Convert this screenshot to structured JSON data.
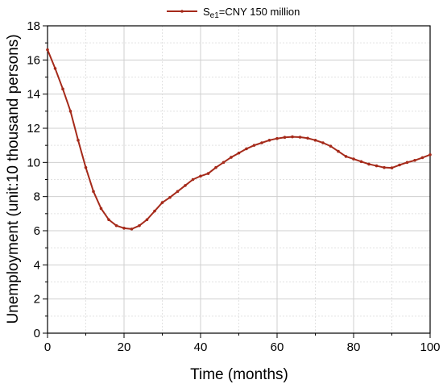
{
  "chart_data": {
    "type": "line",
    "title": "",
    "xlabel": "Time (months)",
    "ylabel": "Unemployment  (unit:10 thousand persons)",
    "xlim": [
      0,
      100
    ],
    "ylim": [
      0,
      18
    ],
    "xticks": [
      0,
      20,
      40,
      60,
      80,
      100
    ],
    "yticks": [
      0,
      2,
      4,
      6,
      8,
      10,
      12,
      14,
      16,
      18
    ],
    "grid": true,
    "legend": "top-center",
    "series": [
      {
        "name_main": "S",
        "name_sub": "e1",
        "name_rest": "=CNY 150 million",
        "color": "#a52a1a",
        "x": [
          0,
          2,
          4,
          6,
          8,
          10,
          12,
          14,
          16,
          18,
          20,
          22,
          24,
          26,
          28,
          30,
          32,
          34,
          36,
          38,
          40,
          42,
          44,
          46,
          48,
          50,
          52,
          54,
          56,
          58,
          60,
          62,
          64,
          66,
          68,
          70,
          72,
          74,
          76,
          78,
          80,
          82,
          84,
          86,
          88,
          90,
          92,
          94,
          96,
          98,
          100
        ],
        "y": [
          16.6,
          15.5,
          14.3,
          13.0,
          11.3,
          9.7,
          8.3,
          7.3,
          6.65,
          6.3,
          6.15,
          6.1,
          6.3,
          6.65,
          7.15,
          7.65,
          7.95,
          8.3,
          8.65,
          9.0,
          9.2,
          9.35,
          9.7,
          10.0,
          10.3,
          10.55,
          10.8,
          11.0,
          11.15,
          11.3,
          11.4,
          11.47,
          11.5,
          11.48,
          11.42,
          11.3,
          11.15,
          10.95,
          10.65,
          10.35,
          10.2,
          10.05,
          9.9,
          9.8,
          9.7,
          9.68,
          9.85,
          10.0,
          10.12,
          10.28,
          10.45
        ]
      }
    ]
  }
}
